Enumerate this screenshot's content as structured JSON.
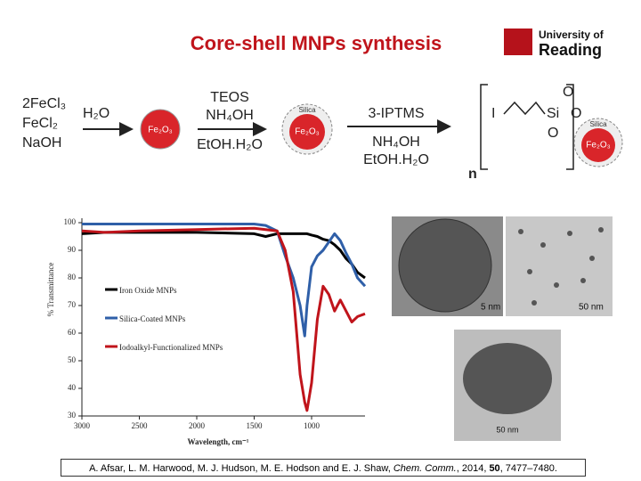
{
  "header": {
    "title": "Core-shell MNPs synthesis",
    "logo": [
      "University of",
      "Reading"
    ]
  },
  "scheme": {
    "reactants": [
      "2FeCl₃",
      "FeCl₂",
      "NaOH"
    ],
    "step1": "H₂O",
    "core": "Fe₂O₃",
    "step2": [
      "TEOS",
      "NH₄OH",
      "EtOH.H₂O"
    ],
    "shell": "Silica",
    "step3": [
      "3-IPTMS",
      "NH₄OH",
      "EtOH.H₂O"
    ],
    "product": {
      "iodine": "I",
      "silicon": "Si",
      "oxygen": [
        "O",
        "O",
        "O"
      ],
      "repeat": "n"
    }
  },
  "images": {
    "scale_labels": [
      "5 nm",
      "50 nm",
      "50 nm"
    ]
  },
  "chart_data": {
    "type": "line",
    "ylabel": "% Transmittance",
    "xlabel": "Wavelength, cm⁻¹",
    "x": [
      3000,
      2800,
      2500,
      2000,
      1500,
      1400,
      1300,
      1230,
      1160,
      1100,
      1060,
      1040,
      1000,
      950,
      900,
      850,
      800,
      750,
      700,
      650,
      600,
      535
    ],
    "series": [
      {
        "name": "Iron Oxide MNPs",
        "color": "#000000",
        "values": [
          96,
          96.5,
          96.5,
          96.5,
          96,
          95,
          96,
          96,
          96,
          96,
          96,
          96,
          95.5,
          95,
          94,
          93.5,
          92,
          90,
          87,
          85,
          82,
          80
        ]
      },
      {
        "name": "Silica-Coated MNPs",
        "color": "#2f5fa8",
        "values": [
          99.5,
          99.5,
          99.5,
          99.5,
          99.5,
          99,
          97,
          88,
          80,
          70,
          59,
          70,
          84,
          88,
          90,
          93,
          96,
          93.5,
          89,
          85,
          80,
          77
        ]
      },
      {
        "name": "Iodoalkyl-Functionalized MNPs",
        "color": "#c0141b",
        "values": [
          97,
          96.5,
          97,
          97.5,
          98,
          97.5,
          97,
          90,
          75,
          45,
          35,
          32,
          42,
          65,
          77,
          74,
          68,
          72,
          68,
          64,
          66,
          67
        ]
      }
    ],
    "xlim": [
      3000,
      535
    ],
    "xticks": [
      3000,
      2500,
      2000,
      1500,
      1000
    ],
    "ylim": [
      30,
      100
    ],
    "yticks": [
      30,
      40,
      50,
      60,
      70,
      80,
      90,
      100
    ],
    "grid": false
  },
  "citation": {
    "authors": "A. Afsar, L. M. Harwood, M. J. Hudson, M. E. Hodson and E. J. Shaw, ",
    "journal": "Chem. Comm.",
    "year": ", 2014, ",
    "volume": "50",
    "pages": ", 7477–7480."
  }
}
